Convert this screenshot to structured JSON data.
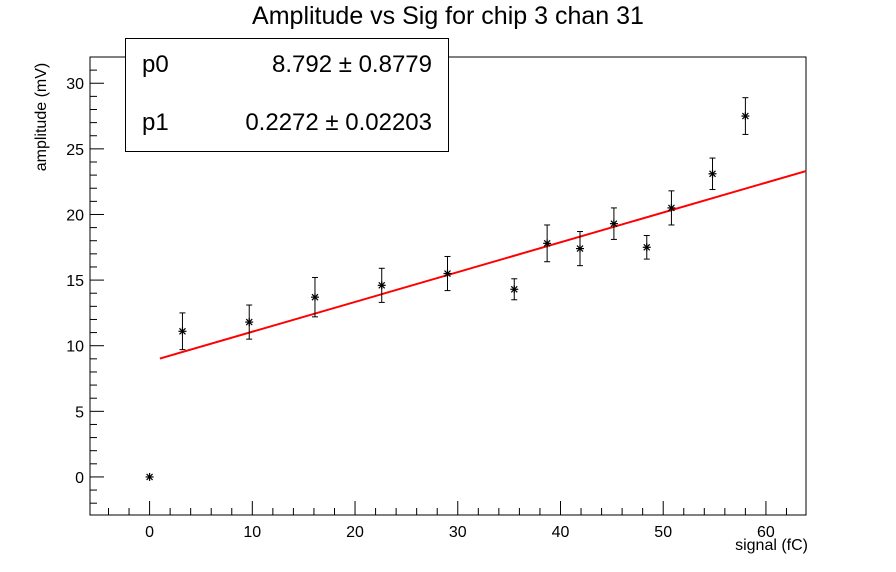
{
  "chart_data": {
    "type": "scatter",
    "title": "Amplitude vs Sig for chip 3 chan 31",
    "xlabel": "signal (fC)",
    "ylabel": "amplitude (mV)",
    "xlim": [
      -5.8,
      63.9
    ],
    "ylim": [
      -2.9,
      32
    ],
    "xticks": [
      0,
      10,
      20,
      30,
      40,
      50,
      60
    ],
    "yticks": [
      0,
      5,
      10,
      15,
      20,
      25,
      30
    ],
    "grid": false,
    "points": [
      {
        "x": 0.0,
        "y": 0.0,
        "err": 0.0
      },
      {
        "x": 3.2,
        "y": 11.1,
        "err": 1.4
      },
      {
        "x": 9.7,
        "y": 11.8,
        "err": 1.3
      },
      {
        "x": 16.1,
        "y": 13.7,
        "err": 1.5
      },
      {
        "x": 22.6,
        "y": 14.6,
        "err": 1.3
      },
      {
        "x": 29.0,
        "y": 15.5,
        "err": 1.3
      },
      {
        "x": 35.5,
        "y": 14.3,
        "err": 0.8
      },
      {
        "x": 38.7,
        "y": 17.8,
        "err": 1.4
      },
      {
        "x": 41.9,
        "y": 17.4,
        "err": 1.3
      },
      {
        "x": 45.2,
        "y": 19.3,
        "err": 1.2
      },
      {
        "x": 48.4,
        "y": 17.5,
        "err": 0.9
      },
      {
        "x": 50.8,
        "y": 20.5,
        "err": 1.3
      },
      {
        "x": 54.8,
        "y": 23.1,
        "err": 1.2
      },
      {
        "x": 58.0,
        "y": 27.5,
        "err": 1.4
      }
    ],
    "fit": {
      "type": "linear",
      "color": "#ff0000",
      "x_range": [
        1.0,
        63.9
      ],
      "p0": 8.792,
      "p1": 0.2272
    },
    "stats": {
      "p0_label": "p0",
      "p0_text": "8.792 ± 0.8779",
      "p1_label": "p1",
      "p1_text": "0.2272 ± 0.02203"
    }
  }
}
